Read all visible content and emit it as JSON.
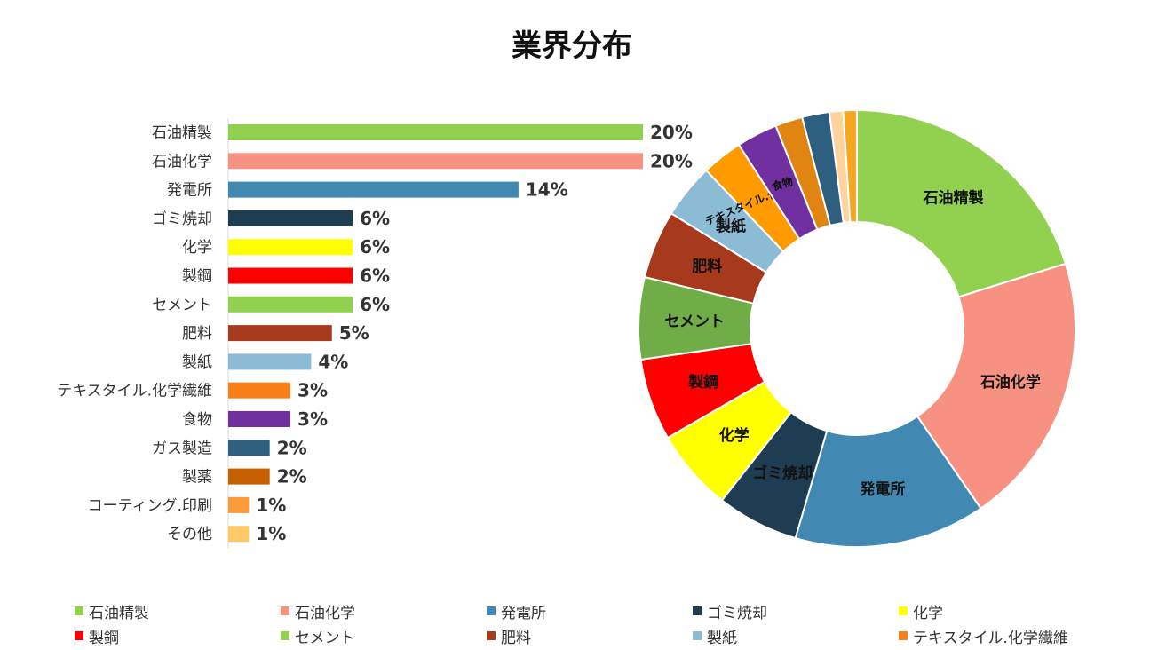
{
  "chart_data": {
    "type": "bar",
    "title": "業界分布",
    "categories": [
      "石油精製",
      "石油化学",
      "発電所",
      "ゴミ焼却",
      "化学",
      "製鋼",
      "セメント",
      "肥料",
      "製紙",
      "テキスタイル.化学繊維",
      "食物",
      "ガス製造",
      "製薬",
      "コーティング.印刷",
      "その他"
    ],
    "values": [
      20,
      20,
      14,
      6,
      6,
      6,
      6,
      5,
      4,
      3,
      3,
      2,
      2,
      1,
      1
    ],
    "value_labels": [
      "20%",
      "20%",
      "14%",
      "6%",
      "6%",
      "6%",
      "6%",
      "5%",
      "4%",
      "3%",
      "3%",
      "2%",
      "2%",
      "1%",
      "1%"
    ],
    "colors": [
      "#92d050",
      "#f79283",
      "#4189b3",
      "#1f3d52",
      "#ffff00",
      "#ff0000",
      "#92d050",
      "#a7391c",
      "#8cbbd6",
      "#f98018",
      "#7030a0",
      "#2e5f7e",
      "#c55f00",
      "#ff9a3a",
      "#ffc965"
    ],
    "grid": false,
    "donut": {
      "type": "pie",
      "style": "donut",
      "categories": [
        "石油精製",
        "石油化学",
        "発電所",
        "ゴミ焼却",
        "化学",
        "製鋼",
        "セメント",
        "肥料",
        "製紙",
        "テキスタイル.化学繊維",
        "食物",
        "ガス製造",
        "製薬",
        "コーティング.印刷",
        "その他"
      ],
      "values": [
        20,
        20,
        14,
        6,
        6,
        6,
        6,
        5,
        4,
        3,
        3,
        2,
        2,
        1,
        1
      ],
      "slice_labels": [
        "石油精製",
        "石油化学",
        "発電所",
        "ゴミ焼却",
        "化学",
        "製鋼",
        "セメント",
        "肥料",
        "製紙",
        "テキスタイル.化学繊維",
        "食物",
        "",
        "",
        "",
        ""
      ],
      "colors": [
        "#92d050",
        "#f79283",
        "#4189b3",
        "#1f3d52",
        "#ffff00",
        "#ff0000",
        "#70ad47",
        "#a7391c",
        "#8cbbd6",
        "#ff9a00",
        "#7030a0",
        "#e08412",
        "#2e5f7e",
        "#ffd39b",
        "#f5a623"
      ]
    },
    "legend": {
      "placement": "bottom",
      "items": [
        {
          "label": "石油精製",
          "color": "#92d050"
        },
        {
          "label": "石油化学",
          "color": "#f79283"
        },
        {
          "label": "発電所",
          "color": "#4189b3"
        },
        {
          "label": "ゴミ焼却",
          "color": "#1f3d52"
        },
        {
          "label": "化学",
          "color": "#ffff00"
        },
        {
          "label": "製鋼",
          "color": "#ff0000"
        },
        {
          "label": "セメント",
          "color": "#92d050"
        },
        {
          "label": "肥料",
          "color": "#a7391c"
        },
        {
          "label": "製紙",
          "color": "#8cbbd6"
        },
        {
          "label": "テキスタイル.化学繊維",
          "color": "#f98018"
        }
      ]
    }
  }
}
